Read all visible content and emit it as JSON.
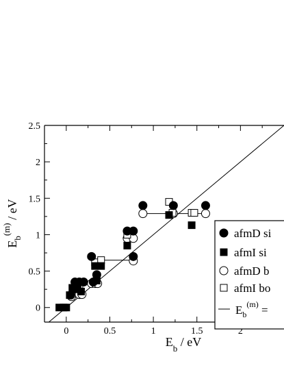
{
  "chart_data": {
    "type": "scatter",
    "title": "",
    "xlabel": "E_b / eV",
    "ylabel": "E_b^(m) / eV",
    "xlim": [
      -0.25,
      2.5
    ],
    "ylim": [
      -0.2,
      2.5
    ],
    "x_ticks": [
      "0",
      "0.5",
      "1",
      "1.5",
      "2"
    ],
    "y_ticks": [
      "0",
      "0.5",
      "1",
      "1.5",
      "2",
      "2.5"
    ],
    "x_tick_values": [
      0,
      0.5,
      1,
      1.5,
      2
    ],
    "y_tick_values": [
      0,
      0.5,
      1,
      1.5,
      2,
      2.5
    ],
    "legend_position": "right, cropped",
    "series": [
      {
        "name": "afmD si",
        "marker": "filled-circle",
        "points": [
          [
            0.05,
            0.17
          ],
          [
            0.08,
            0.25
          ],
          [
            0.1,
            0.35
          ],
          [
            0.12,
            0.3
          ],
          [
            0.15,
            0.35
          ],
          [
            0.2,
            0.35
          ],
          [
            0.29,
            0.7
          ],
          [
            0.31,
            0.35
          ],
          [
            0.35,
            0.45
          ],
          [
            0.7,
            1.05
          ],
          [
            0.77,
            1.05
          ],
          [
            0.77,
            0.7
          ],
          [
            0.88,
            1.4
          ],
          [
            1.23,
            1.4
          ],
          [
            1.6,
            1.4
          ]
        ]
      },
      {
        "name": "afmI si",
        "marker": "filled-square",
        "points": [
          [
            -0.08,
            0.0
          ],
          [
            -0.03,
            0.0
          ],
          [
            0.0,
            0.0
          ],
          [
            0.04,
            0.17
          ],
          [
            0.07,
            0.27
          ],
          [
            0.1,
            0.33
          ],
          [
            0.13,
            0.25
          ],
          [
            0.17,
            0.22
          ],
          [
            0.33,
            0.57
          ],
          [
            0.35,
            0.37
          ],
          [
            0.4,
            0.57
          ],
          [
            0.7,
            0.85
          ],
          [
            1.18,
            1.27
          ],
          [
            1.44,
            1.13
          ]
        ]
      },
      {
        "name": "afmD b",
        "marker": "open-circle",
        "points": [
          [
            0.06,
            0.15
          ],
          [
            0.1,
            0.2
          ],
          [
            0.15,
            0.18
          ],
          [
            0.18,
            0.18
          ],
          [
            0.29,
            0.33
          ],
          [
            0.33,
            0.33
          ],
          [
            0.36,
            0.33
          ],
          [
            0.38,
            0.62
          ],
          [
            0.7,
            0.95
          ],
          [
            0.77,
            0.95
          ],
          [
            0.77,
            0.64
          ],
          [
            0.88,
            1.29
          ],
          [
            1.23,
            1.29
          ],
          [
            1.6,
            1.29
          ]
        ]
      },
      {
        "name": "afmI bo",
        "marker": "open-square",
        "points": [
          [
            0.1,
            0.27
          ],
          [
            0.15,
            0.27
          ],
          [
            0.33,
            0.62
          ],
          [
            0.4,
            0.65
          ],
          [
            0.7,
            1.0
          ],
          [
            1.18,
            1.45
          ],
          [
            1.22,
            1.3
          ],
          [
            1.44,
            1.3
          ],
          [
            1.47,
            1.3
          ]
        ]
      }
    ],
    "connector_lines": [
      [
        [
          0.29,
          0.65
        ],
        [
          0.77,
          0.65
        ]
      ],
      [
        [
          0.88,
          1.29
        ],
        [
          1.6,
          1.29
        ]
      ]
    ],
    "reference_line": {
      "name": "E_b^(m) =",
      "x": [
        -0.25,
        2.5
      ],
      "y": [
        -0.25,
        2.5
      ]
    },
    "legend": [
      "afmD si",
      "afmI si",
      "afmD b",
      "afmI bo",
      "E_b^(m) ="
    ]
  }
}
